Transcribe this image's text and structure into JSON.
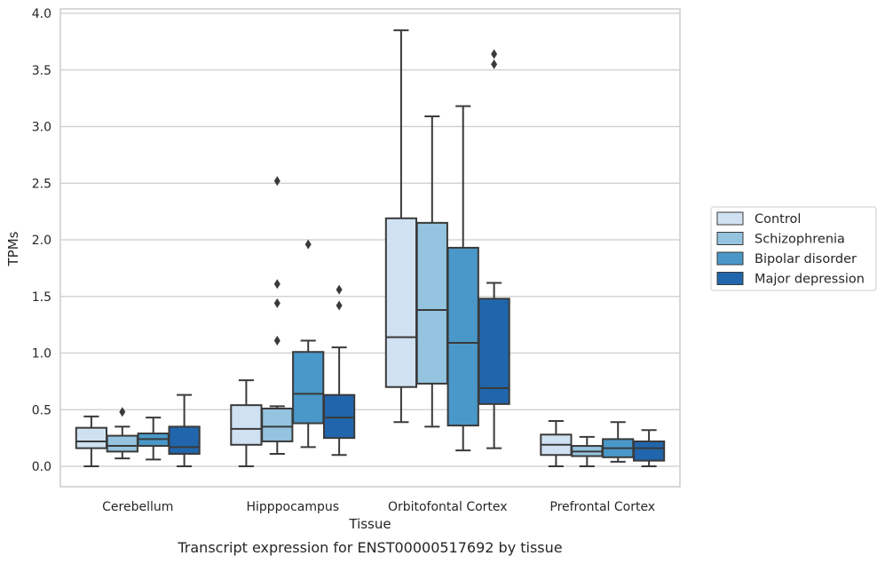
{
  "chart_data": {
    "type": "box",
    "xlabel": "Tissue",
    "ylabel": "TPMs",
    "caption": "Transcript expression for ENST00000517692 by tissue",
    "ylim": [
      -0.18,
      4.05
    ],
    "yticks": [
      0.0,
      0.5,
      1.0,
      1.5,
      2.0,
      2.5,
      3.0,
      3.5,
      4.0
    ],
    "ytick_labels": [
      "0.0",
      "0.5",
      "1.0",
      "1.5",
      "2.0",
      "2.5",
      "3.0",
      "3.5",
      "4.0"
    ],
    "grid": "horizontal",
    "legend_position": "right",
    "categories": [
      "Cerebellum",
      "Hipppocampus",
      "Orbitofontal Cortex",
      "Prefrontal Cortex"
    ],
    "series": [
      {
        "name": "Control",
        "color": "#d0e1f2",
        "boxes": [
          {
            "whisker_low": 0.0,
            "q1": 0.16,
            "median": 0.22,
            "q3": 0.34,
            "whisker_high": 0.44,
            "outliers": []
          },
          {
            "whisker_low": 0.0,
            "q1": 0.19,
            "median": 0.33,
            "q3": 0.54,
            "whisker_high": 0.76,
            "outliers": []
          },
          {
            "whisker_low": 0.39,
            "q1": 0.7,
            "median": 1.14,
            "q3": 2.19,
            "whisker_high": 3.85,
            "outliers": []
          },
          {
            "whisker_low": 0.0,
            "q1": 0.1,
            "median": 0.19,
            "q3": 0.28,
            "whisker_high": 0.4,
            "outliers": []
          }
        ]
      },
      {
        "name": "Schizophrenia",
        "color": "#94c4df",
        "boxes": [
          {
            "whisker_low": 0.07,
            "q1": 0.13,
            "median": 0.18,
            "q3": 0.27,
            "whisker_high": 0.35,
            "outliers": [
              0.48
            ]
          },
          {
            "whisker_low": 0.11,
            "q1": 0.22,
            "median": 0.35,
            "q3": 0.51,
            "whisker_high": 0.53,
            "outliers": [
              1.11,
              1.44,
              1.61,
              2.52
            ]
          },
          {
            "whisker_low": 0.35,
            "q1": 0.73,
            "median": 1.38,
            "q3": 2.15,
            "whisker_high": 3.09,
            "outliers": []
          },
          {
            "whisker_low": 0.0,
            "q1": 0.09,
            "median": 0.13,
            "q3": 0.18,
            "whisker_high": 0.26,
            "outliers": []
          }
        ]
      },
      {
        "name": "Bipolar disorder",
        "color": "#4a98c9",
        "boxes": [
          {
            "whisker_low": 0.06,
            "q1": 0.18,
            "median": 0.24,
            "q3": 0.29,
            "whisker_high": 0.43,
            "outliers": []
          },
          {
            "whisker_low": 0.17,
            "q1": 0.38,
            "median": 0.64,
            "q3": 1.01,
            "whisker_high": 1.11,
            "outliers": [
              1.96
            ]
          },
          {
            "whisker_low": 0.14,
            "q1": 0.36,
            "median": 1.09,
            "q3": 1.93,
            "whisker_high": 3.18,
            "outliers": []
          },
          {
            "whisker_low": 0.04,
            "q1": 0.08,
            "median": 0.16,
            "q3": 0.24,
            "whisker_high": 0.39,
            "outliers": []
          }
        ]
      },
      {
        "name": "Major depression",
        "color": "#2166ac",
        "boxes": [
          {
            "whisker_low": 0.0,
            "q1": 0.11,
            "median": 0.17,
            "q3": 0.35,
            "whisker_high": 0.63,
            "outliers": []
          },
          {
            "whisker_low": 0.1,
            "q1": 0.25,
            "median": 0.43,
            "q3": 0.63,
            "whisker_high": 1.05,
            "outliers": [
              1.42,
              1.56
            ]
          },
          {
            "whisker_low": 0.16,
            "q1": 0.55,
            "median": 0.69,
            "q3": 1.48,
            "whisker_high": 1.62,
            "outliers": [
              3.55,
              3.64
            ]
          },
          {
            "whisker_low": 0.0,
            "q1": 0.05,
            "median": 0.16,
            "q3": 0.22,
            "whisker_high": 0.32,
            "outliers": []
          }
        ]
      }
    ]
  }
}
